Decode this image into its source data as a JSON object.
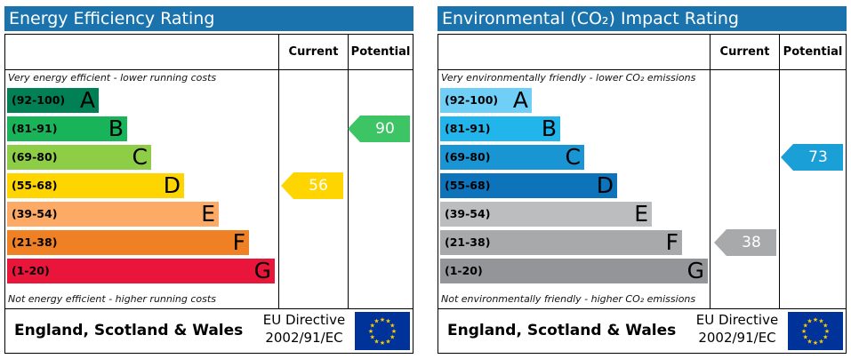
{
  "chart_data": [
    {
      "type": "bar",
      "title": "Energy Efficiency Rating",
      "columns": [
        "Current",
        "Potential"
      ],
      "note_top": "Very energy efficient - lower running costs",
      "note_bottom": "Not energy efficient - higher running costs",
      "categories": [
        "A",
        "B",
        "C",
        "D",
        "E",
        "F",
        "G"
      ],
      "ranges": [
        "(92-100)",
        "(81-91)",
        "(69-80)",
        "(55-68)",
        "(39-54)",
        "(21-38)",
        "(1-20)"
      ],
      "band_colors": [
        "#008054",
        "#19b459",
        "#8dce46",
        "#ffd500",
        "#fcaa65",
        "#ef8023",
        "#e9153b"
      ],
      "current": {
        "value": 56,
        "band": "D",
        "color": "#ffd500"
      },
      "potential": {
        "value": 90,
        "band": "B",
        "color": "#3dc464"
      },
      "footer": {
        "region": "England, Scotland & Wales",
        "directive_line1": "EU Directive",
        "directive_line2": "2002/91/EC"
      }
    },
    {
      "type": "bar",
      "title": "Environmental (CO₂) Impact Rating",
      "columns": [
        "Current",
        "Potential"
      ],
      "note_top": "Very environmentally friendly - lower CO₂ emissions",
      "note_bottom": "Not environmentally friendly - higher CO₂ emissions",
      "categories": [
        "A",
        "B",
        "C",
        "D",
        "E",
        "F",
        "G"
      ],
      "ranges": [
        "(92-100)",
        "(81-91)",
        "(69-80)",
        "(55-68)",
        "(39-54)",
        "(21-38)",
        "(1-20)"
      ],
      "band_colors": [
        "#6fcff6",
        "#22b5eb",
        "#1a95d3",
        "#0d74bc",
        "#bbbdbf",
        "#a7a9ab",
        "#939598"
      ],
      "current": {
        "value": 38,
        "band": "F",
        "color": "#a7a9ab"
      },
      "potential": {
        "value": 73,
        "band": "C",
        "color": "#1a9fd6"
      },
      "footer": {
        "region": "England, Scotland & Wales",
        "directive_line1": "EU Directive",
        "directive_line2": "2002/91/EC"
      }
    }
  ],
  "colors": {
    "header_bg": "#1a73ad",
    "flag_blue": "#003399",
    "flag_stars": "#ffcc00"
  }
}
